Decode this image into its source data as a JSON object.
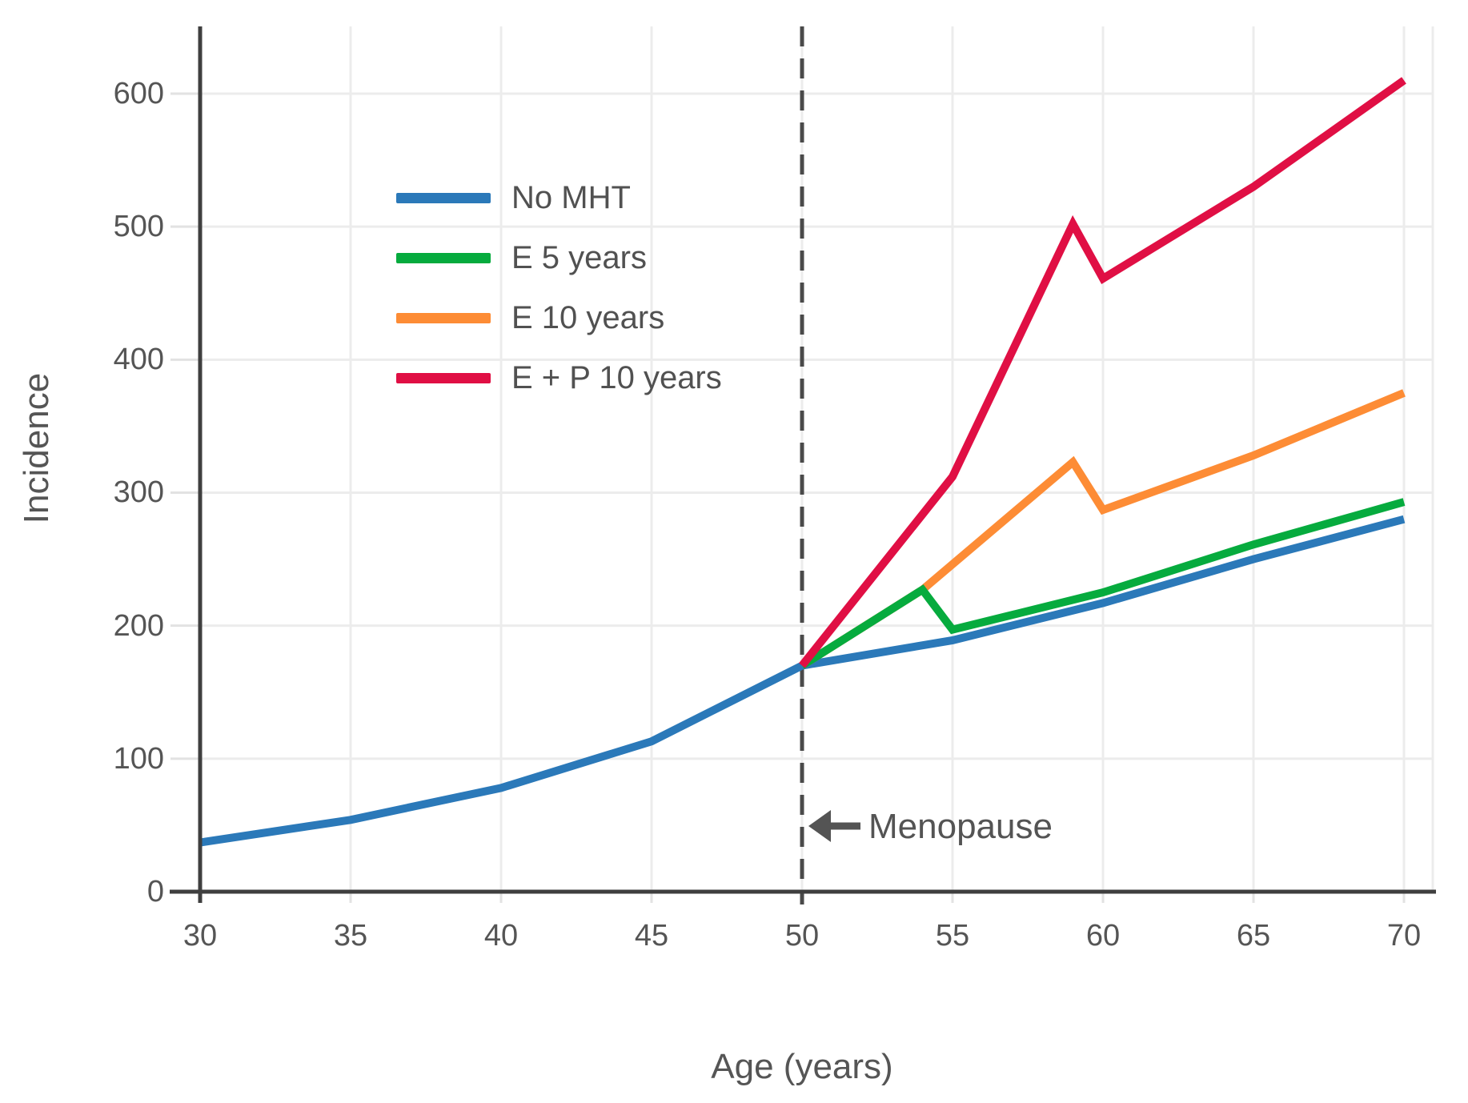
{
  "figure": {
    "background": "#ffffff",
    "axis_color": "#3f3f3f",
    "grid_color": "#ececec",
    "tick_color": "#e2e2e2",
    "tick_label_color": "#555555",
    "axis_title_color": "#555555",
    "legend_label_color": "#515151",
    "annotation_color": "#545454"
  },
  "chart_data": {
    "type": "line",
    "title": "",
    "xlabel": "Age (years)",
    "ylabel": "Incidence",
    "x_ticks": [
      30,
      35,
      40,
      45,
      50,
      55,
      60,
      65,
      70
    ],
    "y_ticks": [
      0,
      100,
      200,
      300,
      400,
      500,
      600
    ],
    "xlim": [
      30,
      71
    ],
    "ylim": [
      0,
      650
    ],
    "grid": true,
    "legend_position": "upper left inside",
    "series": [
      {
        "name": "No MHT",
        "color": "#2b79b9",
        "points": [
          [
            30,
            37
          ],
          [
            35,
            54
          ],
          [
            40,
            78
          ],
          [
            45,
            113
          ],
          [
            50,
            170
          ],
          [
            55,
            189
          ],
          [
            60,
            217
          ],
          [
            65,
            250
          ],
          [
            70,
            280
          ]
        ]
      },
      {
        "name": "E 5 years",
        "color": "#06ab3e",
        "points": [
          [
            50,
            170
          ],
          [
            54,
            227
          ],
          [
            55,
            197
          ],
          [
            60,
            225
          ],
          [
            65,
            261
          ],
          [
            70,
            293
          ]
        ]
      },
      {
        "name": "E 10 years",
        "color": "#fd8c35",
        "points": [
          [
            50,
            170
          ],
          [
            54,
            227
          ],
          [
            59,
            323
          ],
          [
            60,
            287
          ],
          [
            65,
            328
          ],
          [
            70,
            375
          ]
        ]
      },
      {
        "name": "E + P 10 years",
        "color": "#e00f44",
        "points": [
          [
            50,
            170
          ],
          [
            55,
            312
          ],
          [
            59,
            502
          ],
          [
            60,
            461
          ],
          [
            65,
            530
          ],
          [
            70,
            610
          ]
        ]
      }
    ],
    "vline": {
      "x": 50,
      "style": "dashed",
      "color": "#4a4a4a"
    },
    "annotation": {
      "text": "Menopause",
      "icon": "left-arrow",
      "x": 50,
      "y": 48
    }
  }
}
